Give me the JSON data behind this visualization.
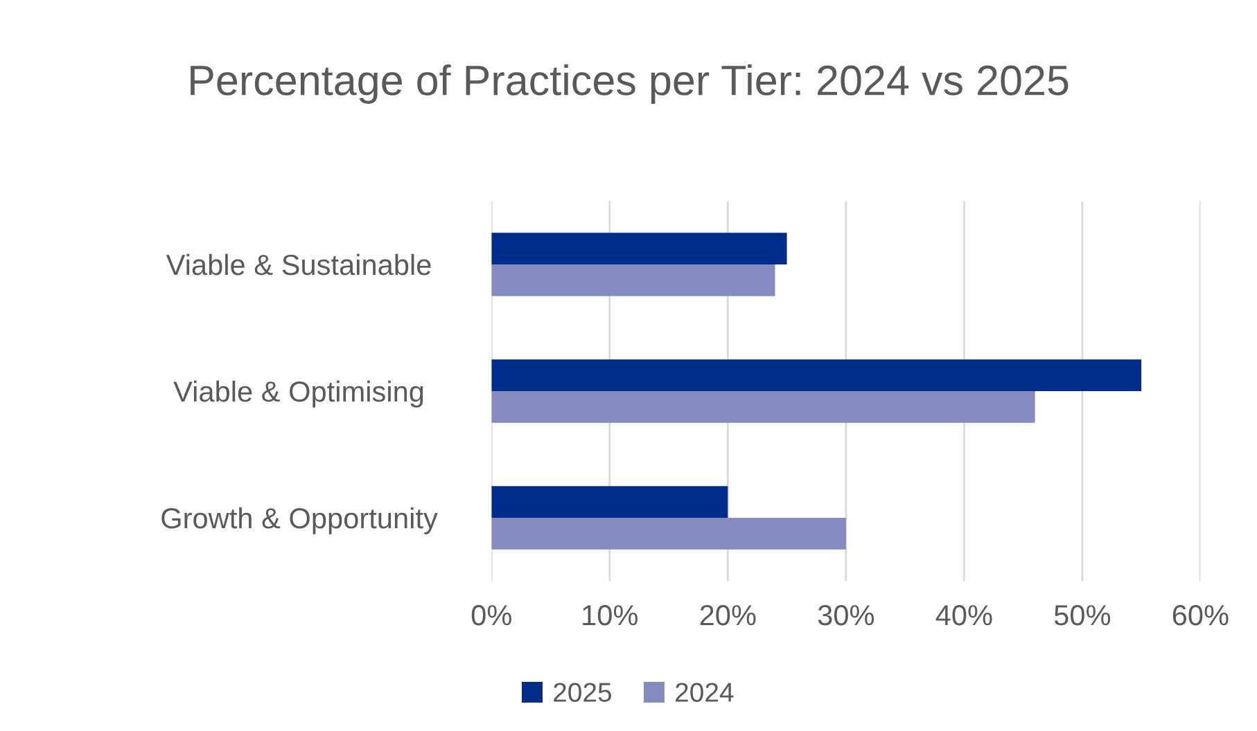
{
  "chart_data": {
    "type": "bar",
    "orientation": "horizontal",
    "title": "Percentage of Practices per Tier: 2024 vs 2025",
    "categories": [
      "Viable & Sustainable",
      "Viable & Optimising",
      "Growth & Opportunity"
    ],
    "series": [
      {
        "name": "2025",
        "color": "#002c8c",
        "values": [
          25,
          55,
          20
        ]
      },
      {
        "name": "2024",
        "color": "#848bbe",
        "values": [
          24,
          46,
          30
        ]
      }
    ],
    "xlim": [
      0,
      60
    ],
    "xticks": [
      {
        "value": 0,
        "label": "0%"
      },
      {
        "value": 10,
        "label": "10%"
      },
      {
        "value": 20,
        "label": "20%"
      },
      {
        "value": 30,
        "label": "30%"
      },
      {
        "value": 40,
        "label": "40%"
      },
      {
        "value": 50,
        "label": "50%"
      },
      {
        "value": 60,
        "label": "60%"
      }
    ],
    "grid": "x",
    "legend": "bottom"
  }
}
